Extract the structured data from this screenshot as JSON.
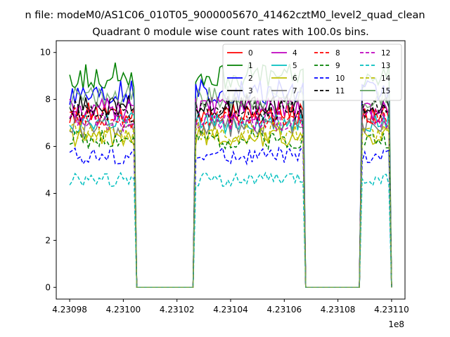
{
  "chart_data": {
    "type": "line",
    "suptitle": "n file: modeM0/AS1C06_010T05_9000005670_41462cztM0_level2_quad_clean",
    "title": "Quadrant 0 module wise count rates with 100.0s bins.",
    "xlabel": "",
    "ylabel": "",
    "x_offset_label": "1e8",
    "x_tick_labels": [
      "4.23098",
      "4.23100",
      "4.23102",
      "4.23104",
      "4.23106",
      "4.23108",
      "4.23110"
    ],
    "x_ticks": [
      4.23098,
      4.231,
      4.23102,
      4.23104,
      4.23106,
      4.23108,
      4.2311
    ],
    "xlim": [
      4.230975,
      4.231105
    ],
    "y_ticks": [
      0,
      2,
      4,
      6,
      8,
      10
    ],
    "ylim": [
      -0.5,
      10.5
    ],
    "grid": false,
    "legend_placement": "top-right",
    "legend_columns": 4,
    "on_segments": [
      [
        4.23098,
        4.231005
      ],
      [
        4.231027,
        4.231068
      ],
      [
        4.231089,
        4.2311
      ]
    ],
    "series": [
      {
        "name": "0",
        "color": "#ff0000",
        "dash": "solid",
        "level": 7.4
      },
      {
        "name": "1",
        "color": "#008000",
        "dash": "solid",
        "level": 9.0
      },
      {
        "name": "2",
        "color": "#0000ff",
        "dash": "solid",
        "level": 8.3
      },
      {
        "name": "3",
        "color": "#000000",
        "dash": "solid",
        "level": 7.7
      },
      {
        "name": "4",
        "color": "#bf00bf",
        "dash": "solid",
        "level": 7.6
      },
      {
        "name": "5",
        "color": "#00bfbf",
        "dash": "solid",
        "level": 7.0
      },
      {
        "name": "6",
        "color": "#bfbf00",
        "dash": "solid",
        "level": 6.4
      },
      {
        "name": "7",
        "color": "#7a7a7a",
        "dash": "solid",
        "level": 6.8
      },
      {
        "name": "8",
        "color": "#ff0000",
        "dash": "dashed",
        "level": 7.2
      },
      {
        "name": "9",
        "color": "#008000",
        "dash": "dashed",
        "level": 6.3
      },
      {
        "name": "10",
        "color": "#0000ff",
        "dash": "dashed",
        "level": 5.6
      },
      {
        "name": "11",
        "color": "#000000",
        "dash": "dashed",
        "level": 7.5
      },
      {
        "name": "12",
        "color": "#bf00bf",
        "dash": "dashed",
        "level": 7.1
      },
      {
        "name": "13",
        "color": "#00bfbf",
        "dash": "dashed",
        "level": 4.6
      },
      {
        "name": "14",
        "color": "#bfbf00",
        "dash": "dashed",
        "level": 6.6
      },
      {
        "name": "15",
        "color": "#5fa05f",
        "dash": "solid",
        "level": 8.1
      }
    ]
  }
}
